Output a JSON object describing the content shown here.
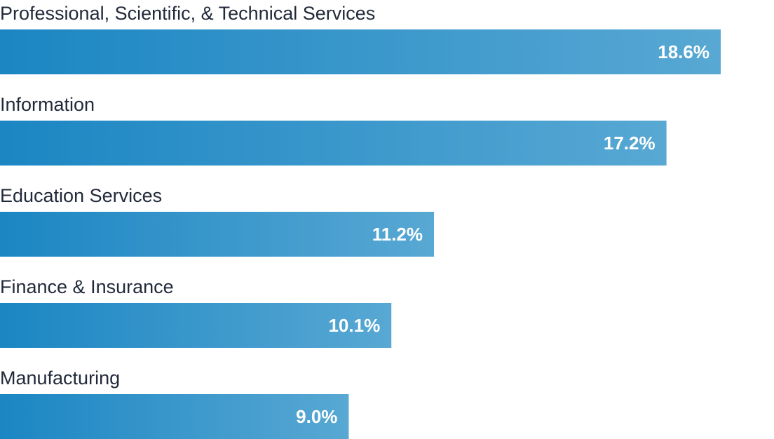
{
  "chart_data": {
    "type": "bar",
    "orientation": "horizontal",
    "categories": [
      "Professional, Scientific, & Technical Services",
      "Information",
      "Education Services",
      "Finance & Insurance",
      "Manufacturing"
    ],
    "values": [
      18.6,
      17.2,
      11.2,
      10.1,
      9.0
    ],
    "value_labels": [
      "18.6%",
      "17.2%",
      "11.2%",
      "10.1%",
      "9.0%"
    ],
    "unit": "%",
    "title": "",
    "xlabel": "",
    "ylabel": "",
    "grid": false,
    "legend": "none"
  },
  "colors": {
    "bar_start": "#1b86c3",
    "bar_end": "#58a8d3",
    "label_text": "#222a3a",
    "value_text": "#ffffff"
  }
}
